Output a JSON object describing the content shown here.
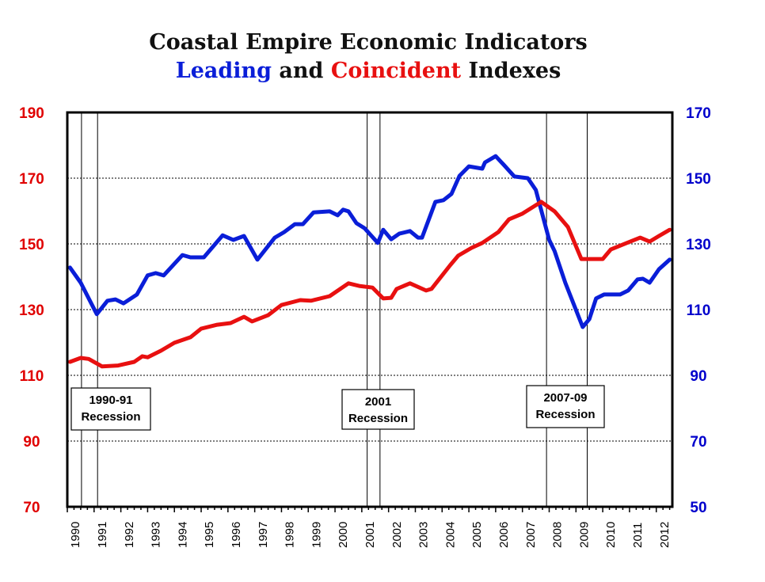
{
  "title_line1": "Coastal Empire Economic Indicators",
  "title_line2": {
    "leading": "Leading",
    "and": "and",
    "coincident": "Coincident",
    "indexes": "Indexes"
  },
  "chart_data": {
    "type": "line",
    "title": "Coastal Empire Economic Indicators — Leading and Coincident Indexes",
    "x_ticks": [
      "1990",
      "1991",
      "1992",
      "1993",
      "1994",
      "1995",
      "1996",
      "1997",
      "1998",
      "1999",
      "2000",
      "2001",
      "2002",
      "2003",
      "2004",
      "2005",
      "2006",
      "2007",
      "2008",
      "2009",
      "2010",
      "2011",
      "2012"
    ],
    "xlim": [
      1990,
      2012.6
    ],
    "left_axis": {
      "ylim": [
        70,
        190
      ],
      "ticks": [
        70,
        90,
        110,
        130,
        150,
        170,
        190
      ],
      "color": "#e00000"
    },
    "right_axis": {
      "ylim": [
        50,
        170
      ],
      "ticks": [
        50,
        70,
        90,
        110,
        130,
        150,
        170
      ],
      "color": "#0000cc"
    },
    "grid": "horizontal dotted",
    "series": [
      {
        "name": "Leading",
        "axis": "right",
        "color": "#0a1ed8",
        "points": [
          [
            1990.1,
            122.8
          ],
          [
            1990.5,
            118.2
          ],
          [
            1991.1,
            108.6
          ],
          [
            1991.5,
            112.7
          ],
          [
            1991.8,
            113.1
          ],
          [
            1992.1,
            111.9
          ],
          [
            1992.6,
            114.6
          ],
          [
            1993.0,
            120.4
          ],
          [
            1993.3,
            121.1
          ],
          [
            1993.6,
            120.4
          ],
          [
            1994.3,
            126.6
          ],
          [
            1994.6,
            125.9
          ],
          [
            1995.1,
            125.9
          ],
          [
            1995.8,
            132.6
          ],
          [
            1996.2,
            131.2
          ],
          [
            1996.6,
            132.4
          ],
          [
            1997.1,
            125.2
          ],
          [
            1997.75,
            131.9
          ],
          [
            1998.1,
            133.6
          ],
          [
            1998.5,
            136.0
          ],
          [
            1998.8,
            136.0
          ],
          [
            1999.2,
            139.6
          ],
          [
            1999.8,
            139.9
          ],
          [
            2000.1,
            138.7
          ],
          [
            2000.3,
            140.4
          ],
          [
            2000.5,
            139.9
          ],
          [
            2000.8,
            136.3
          ],
          [
            2001.1,
            134.8
          ],
          [
            2001.6,
            130.3
          ],
          [
            2001.8,
            134.3
          ],
          [
            2002.1,
            131.4
          ],
          [
            2002.4,
            133.1
          ],
          [
            2002.8,
            133.9
          ],
          [
            2003.1,
            131.9
          ],
          [
            2003.25,
            131.9
          ],
          [
            2003.75,
            142.8
          ],
          [
            2004.05,
            143.3
          ],
          [
            2004.35,
            145.2
          ],
          [
            2004.65,
            150.7
          ],
          [
            2005.0,
            153.6
          ],
          [
            2005.5,
            152.9
          ],
          [
            2005.6,
            154.8
          ],
          [
            2006.0,
            156.7
          ],
          [
            2006.3,
            154.1
          ],
          [
            2006.7,
            150.5
          ],
          [
            2007.2,
            150.0
          ],
          [
            2007.5,
            146.4
          ],
          [
            2008.0,
            131.2
          ],
          [
            2008.2,
            127.8
          ],
          [
            2008.6,
            118.2
          ],
          [
            2009.25,
            104.7
          ],
          [
            2009.5,
            107.1
          ],
          [
            2009.75,
            113.4
          ],
          [
            2010.05,
            114.6
          ],
          [
            2010.65,
            114.6
          ],
          [
            2010.95,
            115.8
          ],
          [
            2011.3,
            119.2
          ],
          [
            2011.5,
            119.4
          ],
          [
            2011.75,
            118.2
          ],
          [
            2012.1,
            122.3
          ],
          [
            2012.5,
            125.2
          ]
        ]
      },
      {
        "name": "Coincident",
        "axis": "left",
        "color": "#e81010",
        "points": [
          [
            1990.1,
            114.1
          ],
          [
            1990.5,
            115.3
          ],
          [
            1990.8,
            115.0
          ],
          [
            1991.3,
            112.7
          ],
          [
            1991.9,
            113.0
          ],
          [
            1992.5,
            114.1
          ],
          [
            1992.8,
            115.8
          ],
          [
            1993.0,
            115.5
          ],
          [
            1993.5,
            117.5
          ],
          [
            1994.0,
            119.9
          ],
          [
            1994.6,
            121.6
          ],
          [
            1995.0,
            124.2
          ],
          [
            1995.6,
            125.4
          ],
          [
            1996.1,
            125.9
          ],
          [
            1996.6,
            127.8
          ],
          [
            1996.9,
            126.4
          ],
          [
            1997.5,
            128.3
          ],
          [
            1998.0,
            131.4
          ],
          [
            1998.7,
            132.9
          ],
          [
            1999.1,
            132.7
          ],
          [
            1999.8,
            134.1
          ],
          [
            2000.5,
            138.0
          ],
          [
            2000.9,
            137.2
          ],
          [
            2001.4,
            136.7
          ],
          [
            2001.8,
            133.4
          ],
          [
            2002.1,
            133.6
          ],
          [
            2002.3,
            136.3
          ],
          [
            2002.8,
            138.0
          ],
          [
            2003.4,
            135.8
          ],
          [
            2003.6,
            136.3
          ],
          [
            2004.3,
            143.5
          ],
          [
            2004.6,
            146.4
          ],
          [
            2005.1,
            148.8
          ],
          [
            2005.5,
            150.3
          ],
          [
            2006.1,
            153.6
          ],
          [
            2006.5,
            157.5
          ],
          [
            2007.0,
            159.2
          ],
          [
            2007.7,
            162.8
          ],
          [
            2008.2,
            159.9
          ],
          [
            2008.7,
            155.1
          ],
          [
            2009.2,
            145.4
          ],
          [
            2009.6,
            145.4
          ],
          [
            2010.0,
            145.4
          ],
          [
            2010.3,
            148.3
          ],
          [
            2010.9,
            150.3
          ],
          [
            2011.4,
            151.9
          ],
          [
            2011.75,
            150.7
          ],
          [
            2012.1,
            152.4
          ],
          [
            2012.5,
            154.3
          ]
        ]
      }
    ],
    "recessions": [
      {
        "start": 1990.53,
        "end": 1991.13,
        "label_line1": "1990-91",
        "label_line2": "Recession"
      },
      {
        "start": 2001.2,
        "end": 2001.68,
        "label_line1": "2001",
        "label_line2": "Recession"
      },
      {
        "start": 2007.9,
        "end": 2009.42,
        "label_line1": "2007-09",
        "label_line2": "Recession"
      }
    ]
  }
}
